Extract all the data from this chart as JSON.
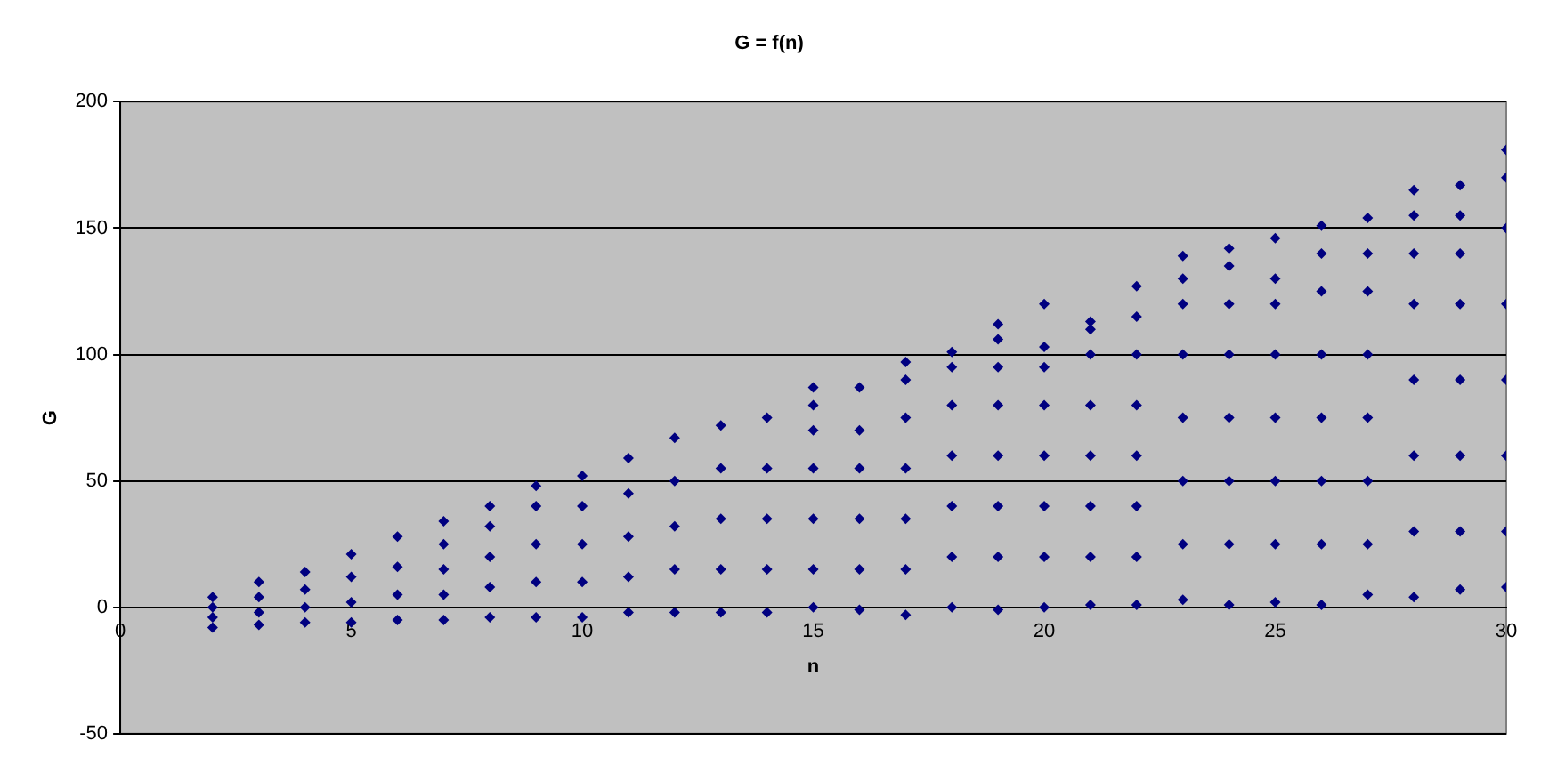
{
  "chart_data": {
    "type": "scatter",
    "title": "G = f(n)",
    "xlabel": "n",
    "ylabel": "G",
    "xlim": [
      0,
      30
    ],
    "xticks": [
      0,
      5,
      10,
      15,
      20,
      25,
      30
    ],
    "ylim": [
      -50,
      200
    ],
    "yticks": [
      -50,
      0,
      50,
      100,
      150,
      200
    ],
    "grid": "y",
    "legend": false,
    "marker": "diamond",
    "color": "#000080",
    "x": [
      2,
      2,
      2,
      2,
      3,
      3,
      3,
      3,
      4,
      4,
      4,
      4,
      5,
      5,
      5,
      5,
      6,
      6,
      6,
      6,
      7,
      7,
      7,
      7,
      7,
      8,
      8,
      8,
      8,
      8,
      9,
      9,
      9,
      9,
      9,
      10,
      10,
      10,
      10,
      10,
      11,
      11,
      11,
      11,
      11,
      12,
      12,
      12,
      12,
      12,
      13,
      13,
      13,
      13,
      13,
      14,
      14,
      14,
      14,
      14,
      15,
      15,
      15,
      15,
      15,
      15,
      15,
      16,
      16,
      16,
      16,
      16,
      16,
      17,
      17,
      17,
      17,
      17,
      17,
      17,
      18,
      18,
      18,
      18,
      18,
      18,
      18,
      19,
      19,
      19,
      19,
      19,
      19,
      19,
      19,
      20,
      20,
      20,
      20,
      20,
      20,
      20,
      20,
      21,
      21,
      21,
      21,
      21,
      21,
      21,
      21,
      22,
      22,
      22,
      22,
      22,
      22,
      22,
      22,
      23,
      23,
      23,
      23,
      23,
      23,
      23,
      23,
      24,
      24,
      24,
      24,
      24,
      24,
      24,
      24,
      25,
      25,
      25,
      25,
      25,
      25,
      25,
      25,
      26,
      26,
      26,
      26,
      26,
      26,
      26,
      26,
      27,
      27,
      27,
      27,
      27,
      27,
      27,
      27,
      28,
      28,
      28,
      28,
      28,
      28,
      28,
      28,
      29,
      29,
      29,
      29,
      29,
      29,
      29,
      29,
      30,
      30,
      30,
      30,
      30,
      30,
      30,
      30
    ],
    "values": [
      -8,
      -4,
      0,
      4,
      -7,
      -2,
      4,
      10,
      -6,
      0,
      7,
      14,
      -6,
      2,
      12,
      21,
      -5,
      5,
      16,
      28,
      -5,
      5,
      15,
      25,
      34,
      -4,
      8,
      20,
      32,
      40,
      -4,
      10,
      25,
      40,
      48,
      -4,
      10,
      25,
      40,
      52,
      -2,
      12,
      28,
      45,
      59,
      -2,
      15,
      32,
      50,
      67,
      -2,
      15,
      35,
      55,
      72,
      -2,
      15,
      35,
      55,
      75,
      0,
      15,
      35,
      55,
      70,
      80,
      87,
      -1,
      15,
      35,
      55,
      70,
      87,
      -3,
      15,
      35,
      55,
      75,
      90,
      97,
      0,
      20,
      40,
      60,
      80,
      95,
      101,
      -1,
      20,
      40,
      60,
      80,
      95,
      106,
      112,
      0,
      20,
      40,
      60,
      80,
      95,
      103,
      120,
      1,
      20,
      40,
      60,
      80,
      100,
      110,
      113,
      1,
      20,
      40,
      60,
      80,
      100,
      115,
      127,
      3,
      25,
      50,
      75,
      100,
      120,
      130,
      139,
      1,
      25,
      50,
      75,
      100,
      120,
      135,
      142,
      2,
      25,
      50,
      75,
      100,
      120,
      130,
      146,
      1,
      25,
      50,
      75,
      100,
      125,
      140,
      151,
      5,
      25,
      50,
      75,
      100,
      125,
      140,
      154,
      4,
      30,
      60,
      90,
      120,
      140,
      155,
      165,
      7,
      30,
      60,
      90,
      120,
      140,
      155,
      167,
      8,
      30,
      60,
      90,
      120,
      150,
      170,
      181
    ]
  }
}
